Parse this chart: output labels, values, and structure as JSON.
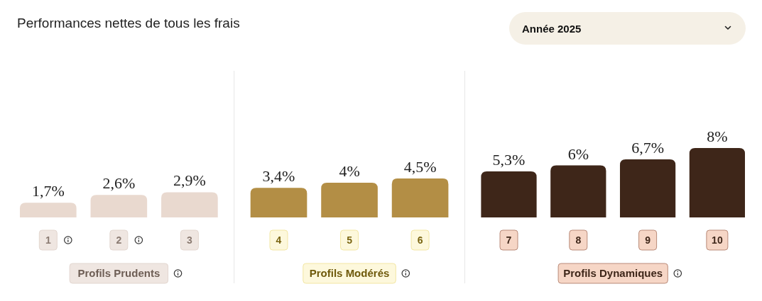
{
  "chart_data": {
    "type": "bar",
    "title": "Performances nettes de tous les frais",
    "annotations": [
      "Année 2025",
      "Profils Prudents",
      "Profils Modérés",
      "Profils Dynamiques"
    ],
    "categories": [
      "1",
      "2",
      "3",
      "4",
      "5",
      "6",
      "7",
      "8",
      "9",
      "10"
    ],
    "values": [
      1.7,
      2.6,
      2.9,
      3.4,
      4,
      4.5,
      5.3,
      6,
      6.7,
      8
    ],
    "value_labels": [
      "1,7%",
      "2,6%",
      "2,9%",
      "3,4%",
      "4%",
      "4,5%",
      "5,3%",
      "6%",
      "6,7%",
      "8%"
    ],
    "colors": [
      "#e9d9cf",
      "#e9d9cf",
      "#e9d9cf",
      "#b38e45",
      "#b38e45",
      "#b38e45",
      "#3e2619",
      "#3e2619",
      "#3e2619",
      "#3e2619"
    ]
  }
}
